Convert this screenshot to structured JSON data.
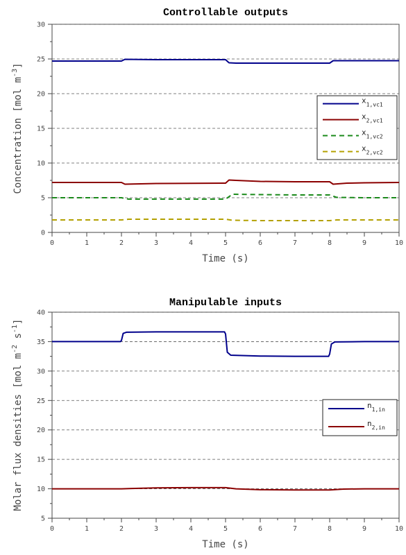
{
  "colors": {
    "series1": "#00008b",
    "series2": "#8b0000",
    "series3": "#1a8a1a",
    "series4": "#b3a000"
  },
  "chart_data": [
    {
      "type": "line",
      "title": "Controllable outputs",
      "xlabel": "Time (s)",
      "ylabel": "Concentration [mol m",
      "ylabel_sup": "-3",
      "ylabel_end": "]",
      "xlim": [
        0,
        10
      ],
      "ylim": [
        0,
        30
      ],
      "xticks": [
        0,
        1,
        2,
        3,
        4,
        5,
        6,
        7,
        8,
        9,
        10
      ],
      "yticks": [
        0,
        5,
        10,
        15,
        20,
        25,
        30
      ],
      "grid": "y-dashed",
      "legend_position": "right",
      "series": [
        {
          "name": "x",
          "sub": "1,vc1",
          "color": "#00008b",
          "dash": "solid",
          "x": [
            0,
            1.95,
            2.0,
            2.1,
            3,
            4.95,
            5.0,
            5.1,
            5.3,
            6,
            7,
            7.95,
            8.0,
            8.1,
            9,
            10
          ],
          "y": [
            24.7,
            24.7,
            24.7,
            24.95,
            24.9,
            24.9,
            24.9,
            24.45,
            24.4,
            24.4,
            24.4,
            24.4,
            24.4,
            24.75,
            24.75,
            24.75
          ]
        },
        {
          "name": "x",
          "sub": "2,vc1",
          "color": "#8b0000",
          "dash": "solid",
          "x": [
            0,
            1.95,
            2.0,
            2.1,
            3,
            4.95,
            5.0,
            5.1,
            5.3,
            6,
            7,
            7.95,
            8.0,
            8.1,
            8.5,
            9,
            10
          ],
          "y": [
            7.2,
            7.2,
            7.2,
            6.95,
            7.05,
            7.1,
            7.1,
            7.55,
            7.5,
            7.35,
            7.3,
            7.3,
            7.3,
            6.95,
            7.1,
            7.15,
            7.2
          ]
        },
        {
          "name": "x",
          "sub": "1,vc2",
          "color": "#1a8a1a",
          "dash": "dashed",
          "x": [
            0,
            1.95,
            2.0,
            2.2,
            3,
            4.95,
            5.0,
            5.2,
            6,
            7,
            7.95,
            8.0,
            8.2,
            9,
            10
          ],
          "y": [
            5.0,
            5.0,
            5.0,
            4.8,
            4.8,
            4.8,
            4.8,
            5.5,
            5.45,
            5.4,
            5.4,
            5.4,
            5.05,
            5.0,
            5.0
          ]
        },
        {
          "name": "x",
          "sub": "2,vc2",
          "color": "#b3a000",
          "dash": "dashed",
          "x": [
            0,
            1.95,
            2.0,
            2.2,
            3,
            4.95,
            5.0,
            5.2,
            6,
            7,
            7.95,
            8.0,
            8.2,
            9,
            10
          ],
          "y": [
            1.8,
            1.8,
            1.8,
            1.9,
            1.9,
            1.9,
            1.9,
            1.75,
            1.7,
            1.7,
            1.7,
            1.7,
            1.8,
            1.8,
            1.8
          ]
        }
      ]
    },
    {
      "type": "line",
      "title": "Manipulable inputs",
      "xlabel": "Time (s)",
      "ylabel": "Molar flux densities [mol m",
      "ylabel_sup": "-2",
      "ylabel_mid": " s",
      "ylabel_sup2": "-1",
      "ylabel_end": "]",
      "xlim": [
        0,
        10
      ],
      "ylim": [
        5,
        40
      ],
      "xticks": [
        0,
        1,
        2,
        3,
        4,
        5,
        6,
        7,
        8,
        9,
        10
      ],
      "yticks": [
        5,
        10,
        15,
        20,
        25,
        30,
        35,
        40
      ],
      "grid": "y-dashed",
      "legend_position": "right",
      "series": [
        {
          "name": "n",
          "sub": "1,in",
          "color": "#00008b",
          "dash": "solid",
          "x": [
            0,
            1.97,
            2.0,
            2.05,
            2.15,
            3,
            4.97,
            5.0,
            5.05,
            5.15,
            6,
            7,
            7.97,
            8.0,
            8.05,
            8.15,
            9,
            10
          ],
          "y": [
            35.0,
            35.0,
            35.2,
            36.4,
            36.6,
            36.65,
            36.65,
            36.3,
            33.2,
            32.7,
            32.55,
            32.5,
            32.5,
            32.9,
            34.6,
            34.95,
            35.0,
            35.0
          ]
        },
        {
          "name": "n",
          "sub": "2,in",
          "color": "#8b0000",
          "dash": "solid",
          "x": [
            0,
            2.0,
            2.3,
            3,
            4,
            5.0,
            5.3,
            6,
            7,
            8.0,
            8.4,
            9,
            10
          ],
          "y": [
            10.0,
            10.0,
            10.05,
            10.15,
            10.2,
            10.2,
            10.0,
            9.85,
            9.8,
            9.8,
            9.95,
            10.0,
            10.0
          ]
        }
      ]
    }
  ]
}
